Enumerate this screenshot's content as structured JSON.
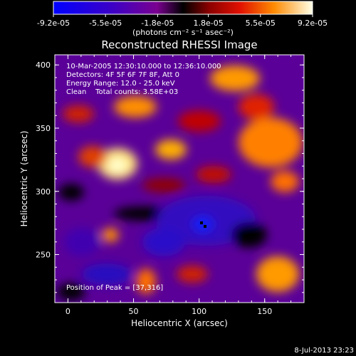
{
  "chart_data": {
    "type": "heatmap",
    "title": "Reconstructed RHESSI Image",
    "xlabel": "Heliocentric X (arcsec)",
    "ylabel": "Heliocentric Y (arcsec)",
    "xlim": [
      -10,
      180
    ],
    "ylim": [
      212,
      408
    ],
    "x_ticks": [
      "0",
      "50",
      "100",
      "150"
    ],
    "y_ticks": [
      "250",
      "300",
      "350",
      "400"
    ],
    "colorbar": {
      "range": [
        -9.2e-05,
        9.2e-05
      ],
      "tick_labels": [
        "-9.2e-05",
        "-5.5e-05",
        "-1.8e-05",
        "1.8e-05",
        "5.5e-05",
        "9.2e-05"
      ],
      "units": "(photons cm⁻² s⁻¹ asec⁻²)"
    },
    "annotations": [
      "10-Mar-2005 12:30:10.000 to 12:36:10.000",
      "Detectors: 4F 5F 6F 7F 8F, Att 0",
      "Energy Range: 12.0 - 25.0 keV",
      "Clean    Total counts: 3.58E+03",
      "Position of Peak = [37,316]"
    ],
    "peak_position": [
      37,
      316
    ],
    "footer_timestamp": "8-Jul-2013 23:23"
  }
}
